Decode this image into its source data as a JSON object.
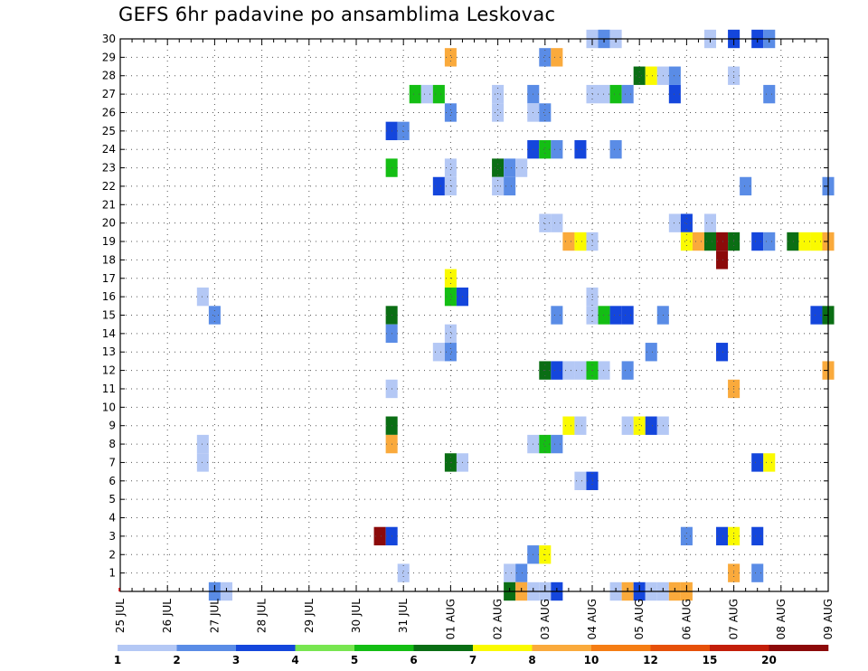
{
  "chart_data": {
    "type": "heatmap",
    "title": "GEFS 6hr padavine po ansamblima Leskovac",
    "xlabel": "",
    "ylabel": "",
    "x_tick_labels": [
      "25 JUL",
      "26 JUL",
      "27 JUL",
      "28 JUL",
      "29 JUL",
      "30 JUL",
      "31 JUL",
      "01 AUG",
      "02 AUG",
      "03 AUG",
      "04 AUG",
      "05 AUG",
      "06 AUG",
      "07 AUG",
      "08 AUG",
      "09 AUG"
    ],
    "y_tick_labels": [
      "1",
      "2",
      "3",
      "4",
      "5",
      "6",
      "7",
      "8",
      "9",
      "10",
      "11",
      "12",
      "13",
      "14",
      "15",
      "16",
      "17",
      "18",
      "19",
      "20",
      "21",
      "22",
      "23",
      "24",
      "25",
      "26",
      "27",
      "28",
      "29",
      "30"
    ],
    "x_unit": "6-hour step (x = steps after 25 JUL 00 UTC)",
    "ylim": [
      0,
      30
    ],
    "xlim": [
      0,
      60
    ],
    "grid": true,
    "colorbar": {
      "labels": [
        "1",
        "2",
        "3",
        "4",
        "5",
        "6",
        "7",
        "8",
        "10",
        "12",
        "15",
        "20"
      ],
      "colors": [
        "#b4c8f5",
        "#5a8ce6",
        "#1446dc",
        "#78e650",
        "#14be14",
        "#0a6e14",
        "#fafa00",
        "#faaa3c",
        "#f57d14",
        "#e6500a",
        "#c31e0a",
        "#8c0a0a"
      ]
    },
    "cells": [
      [
        40,
        30,
        1
      ],
      [
        41,
        30,
        2
      ],
      [
        42,
        30,
        1
      ],
      [
        50,
        30,
        1
      ],
      [
        52,
        30,
        3
      ],
      [
        54,
        30,
        3
      ],
      [
        55,
        30,
        2
      ],
      [
        28,
        29,
        8
      ],
      [
        36,
        29,
        2
      ],
      [
        37,
        29,
        8
      ],
      [
        44,
        28,
        6
      ],
      [
        45,
        28,
        7
      ],
      [
        46,
        28,
        1
      ],
      [
        47,
        28,
        2
      ],
      [
        52,
        28,
        1
      ],
      [
        25,
        27,
        5
      ],
      [
        26,
        27,
        1
      ],
      [
        27,
        27,
        5
      ],
      [
        32,
        27,
        1
      ],
      [
        35,
        27,
        2
      ],
      [
        40,
        27,
        1
      ],
      [
        41,
        27,
        1
      ],
      [
        42,
        27,
        5
      ],
      [
        43,
        27,
        2
      ],
      [
        47,
        27,
        3
      ],
      [
        55,
        27,
        2
      ],
      [
        28,
        26,
        2
      ],
      [
        32,
        26,
        1
      ],
      [
        35,
        26,
        1
      ],
      [
        36,
        26,
        2
      ],
      [
        23,
        25,
        3
      ],
      [
        24,
        25,
        2
      ],
      [
        35,
        24,
        3
      ],
      [
        36,
        24,
        5
      ],
      [
        37,
        24,
        2
      ],
      [
        39,
        24,
        3
      ],
      [
        42,
        24,
        2
      ],
      [
        23,
        23,
        5
      ],
      [
        28,
        23,
        1
      ],
      [
        32,
        23,
        6
      ],
      [
        33,
        23,
        2
      ],
      [
        34,
        23,
        1
      ],
      [
        27,
        22,
        3
      ],
      [
        28,
        22,
        1
      ],
      [
        32,
        22,
        1
      ],
      [
        33,
        22,
        2
      ],
      [
        53,
        22,
        2
      ],
      [
        60,
        22,
        2
      ],
      [
        36,
        20,
        1
      ],
      [
        37,
        20,
        1
      ],
      [
        47,
        20,
        1
      ],
      [
        48,
        20,
        3
      ],
      [
        50,
        20,
        1
      ],
      [
        38,
        19,
        8
      ],
      [
        39,
        19,
        7
      ],
      [
        40,
        19,
        1
      ],
      [
        48,
        19,
        7
      ],
      [
        49,
        19,
        8
      ],
      [
        50,
        19,
        6
      ],
      [
        51,
        19,
        12
      ],
      [
        52,
        19,
        6
      ],
      [
        54,
        19,
        3
      ],
      [
        55,
        19,
        2
      ],
      [
        57,
        19,
        6
      ],
      [
        58,
        19,
        7
      ],
      [
        59,
        19,
        7
      ],
      [
        60,
        19,
        8
      ],
      [
        51,
        18,
        12
      ],
      [
        28,
        17,
        7
      ],
      [
        7,
        16,
        1
      ],
      [
        28,
        16,
        5
      ],
      [
        29,
        16,
        3
      ],
      [
        40,
        16,
        1
      ],
      [
        8,
        15,
        2
      ],
      [
        23,
        15,
        6
      ],
      [
        37,
        15,
        2
      ],
      [
        40,
        15,
        1
      ],
      [
        41,
        15,
        5
      ],
      [
        42,
        15,
        3
      ],
      [
        43,
        15,
        3
      ],
      [
        46,
        15,
        2
      ],
      [
        59,
        15,
        3
      ],
      [
        60,
        15,
        6
      ],
      [
        23,
        14,
        2
      ],
      [
        28,
        14,
        1
      ],
      [
        27,
        13,
        1
      ],
      [
        28,
        13,
        2
      ],
      [
        45,
        13,
        2
      ],
      [
        51,
        13,
        3
      ],
      [
        36,
        12,
        6
      ],
      [
        37,
        12,
        3
      ],
      [
        38,
        12,
        1
      ],
      [
        39,
        12,
        1
      ],
      [
        40,
        12,
        5
      ],
      [
        41,
        12,
        1
      ],
      [
        43,
        12,
        2
      ],
      [
        60,
        12,
        8
      ],
      [
        23,
        11,
        1
      ],
      [
        52,
        11,
        8
      ],
      [
        23,
        9,
        6
      ],
      [
        38,
        9,
        7
      ],
      [
        39,
        9,
        1
      ],
      [
        43,
        9,
        1
      ],
      [
        44,
        9,
        7
      ],
      [
        45,
        9,
        3
      ],
      [
        46,
        9,
        1
      ],
      [
        7,
        8,
        1
      ],
      [
        23,
        8,
        8
      ],
      [
        35,
        8,
        1
      ],
      [
        36,
        8,
        5
      ],
      [
        37,
        8,
        2
      ],
      [
        7,
        7,
        1
      ],
      [
        28,
        7,
        6
      ],
      [
        29,
        7,
        1
      ],
      [
        54,
        7,
        3
      ],
      [
        55,
        7,
        7
      ],
      [
        39,
        6,
        1
      ],
      [
        40,
        6,
        3
      ],
      [
        22,
        3,
        12
      ],
      [
        23,
        3,
        3
      ],
      [
        48,
        3,
        2
      ],
      [
        51,
        3,
        3
      ],
      [
        52,
        3,
        7
      ],
      [
        54,
        3,
        3
      ],
      [
        35,
        2,
        2
      ],
      [
        36,
        2,
        7
      ],
      [
        24,
        1,
        1
      ],
      [
        33,
        1,
        1
      ],
      [
        34,
        1,
        2
      ],
      [
        52,
        1,
        8
      ],
      [
        54,
        1,
        2
      ],
      [
        8,
        0,
        2
      ],
      [
        9,
        0,
        1
      ],
      [
        33,
        0,
        6
      ],
      [
        34,
        0,
        8
      ],
      [
        35,
        0,
        1
      ],
      [
        36,
        0,
        1
      ],
      [
        37,
        0,
        3
      ],
      [
        42,
        0,
        1
      ],
      [
        43,
        0,
        8
      ],
      [
        44,
        0,
        3
      ],
      [
        45,
        0,
        1
      ],
      [
        46,
        0,
        1
      ],
      [
        47,
        0,
        8
      ],
      [
        48,
        0,
        8
      ]
    ]
  }
}
